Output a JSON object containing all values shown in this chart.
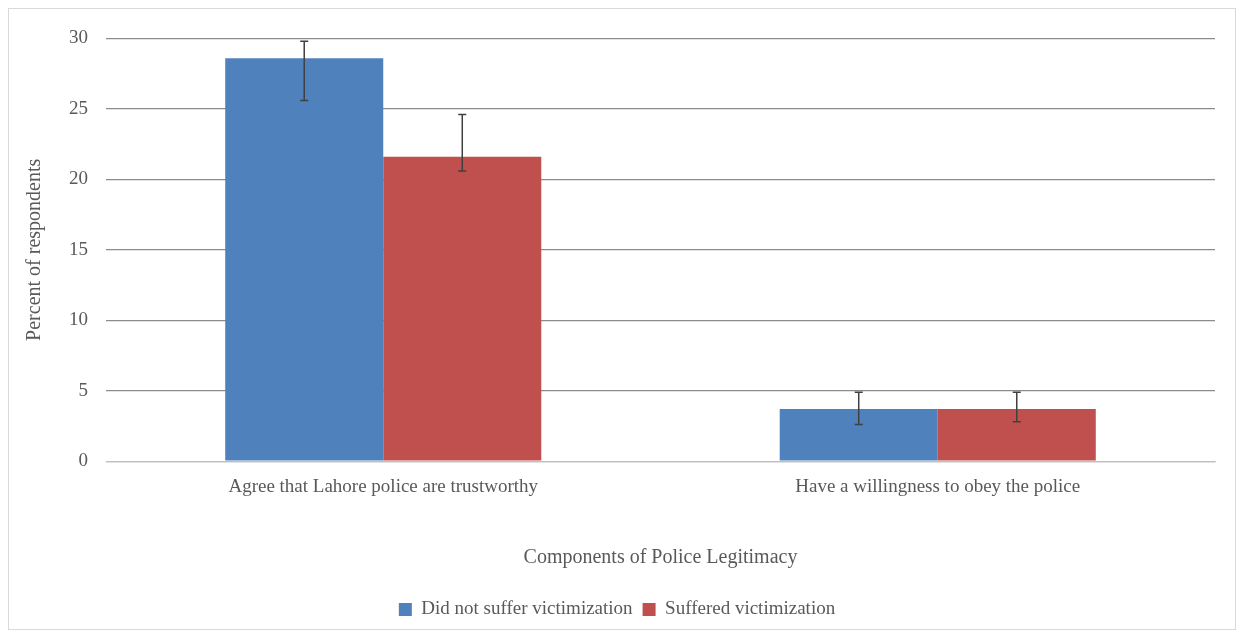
{
  "chart_data": {
    "type": "bar",
    "xlabel": "Components of Police Legitimacy",
    "ylabel": "Percent of respondents",
    "categories": [
      "Agree that Lahore police are trustworthy",
      "Have a willingness to obey the police"
    ],
    "series": [
      {
        "name": "Did not suffer victimization",
        "color": "#4f81bd",
        "values": [
          28.6,
          3.7
        ],
        "errors": [
          [
            25.6,
            29.8
          ],
          [
            2.6,
            4.9
          ]
        ]
      },
      {
        "name": "Suffered victimization",
        "color": "#c0504d",
        "values": [
          21.6,
          3.7
        ],
        "errors": [
          [
            20.6,
            24.6
          ],
          [
            2.8,
            4.9
          ]
        ]
      }
    ],
    "ylim": [
      0,
      30
    ],
    "yticks": [
      0,
      5,
      10,
      15,
      20,
      25,
      30
    ],
    "grid": "y",
    "legend": "bottom"
  }
}
